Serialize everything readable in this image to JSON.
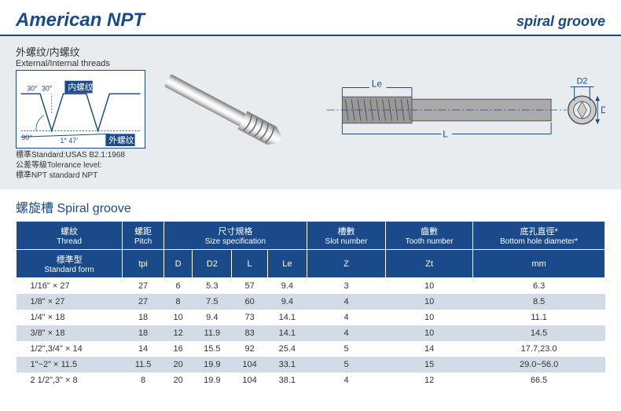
{
  "header": {
    "title_main": "American NPT",
    "title_sub": "spiral groove",
    "title_color": "#1a4a8a"
  },
  "thread_profile": {
    "title_cn": "外螺纹/内螺纹",
    "title_en": "External/Internal threads",
    "angle_top_left": "30°",
    "angle_top_right": "30°",
    "label_internal_cn": "内螺纹",
    "angle_bottom_left": "90°",
    "angle_bottom_right": "1° 47'",
    "label_external_cn": "外螺纹",
    "line_color": "#1a4a8a",
    "note1": "標準Standard:USAS B2.1:1968",
    "note2": "公差等級Tolerance level:",
    "note3": "標準NPT standard NPT"
  },
  "tech_drawing": {
    "label_Le": "Le",
    "label_L": "L",
    "label_D": "D",
    "label_D2": "D2",
    "line_color": "#1a4a8a",
    "body_color": "#888888"
  },
  "section": {
    "title": "螺旋槽 Spiral groove"
  },
  "table": {
    "header_bg": "#1a4a8a",
    "header_fg": "#ffffff",
    "row_alt_bg": "#d3dbe6",
    "row_bg": "#ffffff",
    "columns": {
      "thread": {
        "cn": "螺紋",
        "en": "Thread",
        "sub_cn": "標準型",
        "sub_en": "Standard form"
      },
      "pitch": {
        "cn": "螺距",
        "en": "Pitch",
        "sub": "tpi"
      },
      "size_spec": {
        "cn": "尺寸規格",
        "en": "Size specification"
      },
      "D": "D",
      "D2": "D2",
      "L": "L",
      "Le": "Le",
      "slot": {
        "cn": "槽數",
        "en": "Slot number",
        "sub": "Z"
      },
      "tooth": {
        "cn": "齒數",
        "en": "Tooth number",
        "sub": "Zt"
      },
      "bottom": {
        "cn": "底孔直徑*",
        "en": "Bottom hole diameter*",
        "sub": "mm"
      }
    },
    "rows": [
      {
        "thread": "1/16\" × 27",
        "tpi": "27",
        "D": "6",
        "D2": "5.3",
        "L": "57",
        "Le": "9.4",
        "Z": "3",
        "Zt": "10",
        "mm": "6.3"
      },
      {
        "thread": "1/8\" × 27",
        "tpi": "27",
        "D": "8",
        "D2": "7.5",
        "L": "60",
        "Le": "9.4",
        "Z": "4",
        "Zt": "10",
        "mm": "8.5"
      },
      {
        "thread": "1/4\" × 18",
        "tpi": "18",
        "D": "10",
        "D2": "9.4",
        "L": "73",
        "Le": "14.1",
        "Z": "4",
        "Zt": "10",
        "mm": "11.1"
      },
      {
        "thread": "3/8\" × 18",
        "tpi": "18",
        "D": "12",
        "D2": "11.9",
        "L": "83",
        "Le": "14.1",
        "Z": "4",
        "Zt": "10",
        "mm": "14.5"
      },
      {
        "thread": "1/2\",3/4\" × 14",
        "tpi": "14",
        "D": "16",
        "D2": "15.5",
        "L": "92",
        "Le": "25.4",
        "Z": "5",
        "Zt": "14",
        "mm": "17.7,23.0"
      },
      {
        "thread": "1\"~2\" × 11.5",
        "tpi": "11.5",
        "D": "20",
        "D2": "19.9",
        "L": "104",
        "Le": "33.1",
        "Z": "5",
        "Zt": "15",
        "mm": "29.0~56.0"
      },
      {
        "thread": "2 1/2\",3\" × 8",
        "tpi": "8",
        "D": "20",
        "D2": "19.9",
        "L": "104",
        "Le": "38.1",
        "Z": "4",
        "Zt": "12",
        "mm": "66.5"
      }
    ]
  }
}
